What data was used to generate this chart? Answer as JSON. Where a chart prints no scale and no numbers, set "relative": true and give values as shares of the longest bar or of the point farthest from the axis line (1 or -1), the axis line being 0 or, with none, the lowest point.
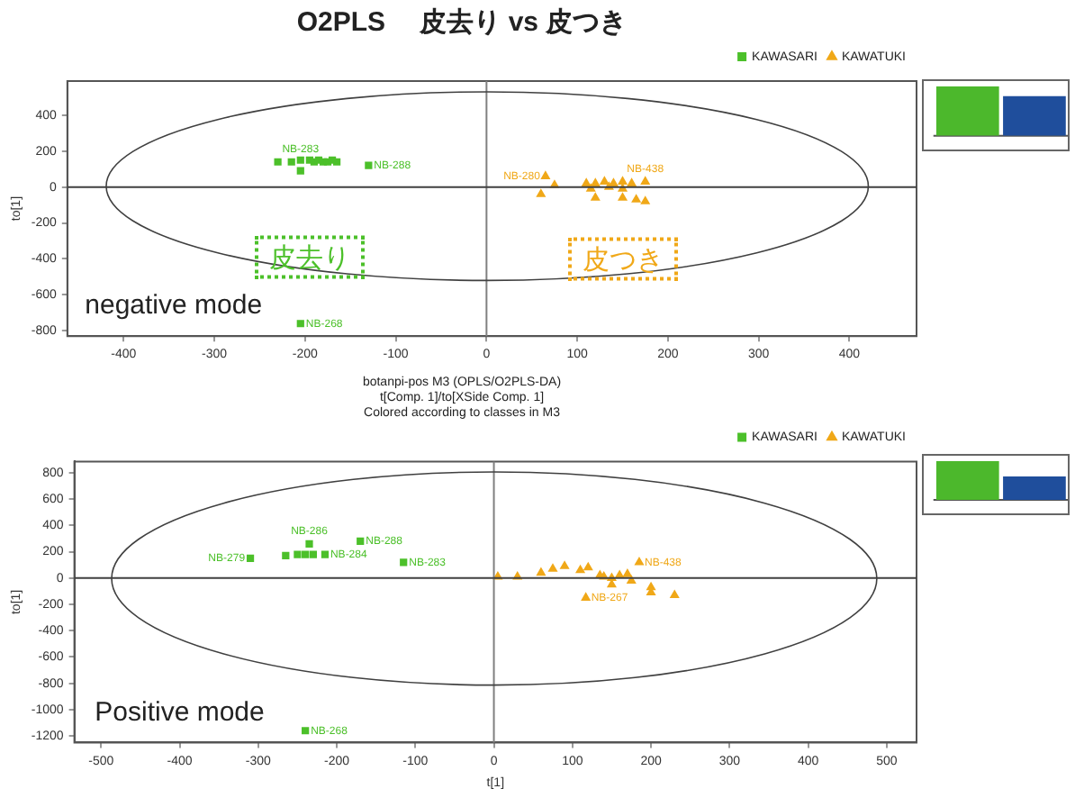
{
  "chart_data": [
    {
      "type": "scatter",
      "title": "O2PLS　 皮去り vs 皮つき",
      "ylabel": "to[1]",
      "legend": "top right",
      "grid": false,
      "xlim": [
        -462,
        474
      ],
      "xticks": [
        -400,
        -300,
        -200,
        -100,
        0,
        100,
        200,
        300,
        400
      ],
      "ylim": [
        -830,
        590
      ],
      "yticks": [
        -800,
        -600,
        -400,
        -200,
        0,
        200,
        400
      ],
      "ref_lines": [
        {
          "axis": "x",
          "value": 0,
          "color": "#808080"
        },
        {
          "axis": "y",
          "value": 0,
          "color": "#404040"
        }
      ],
      "annotations": [
        "negative  mode",
        "皮去り",
        "皮つき",
        {
          "text": "NB-283",
          "x": -205,
          "y": 90
        },
        {
          "text": "NB-288",
          "x": -130,
          "y": 120
        },
        {
          "text": "NB-268",
          "x": -205,
          "y": -760
        },
        {
          "text": "NB-280",
          "x": 65,
          "y": 60
        },
        {
          "text": "NB-438",
          "x": 175,
          "y": 30
        }
      ],
      "series": [
        {
          "name": "KAWASARI",
          "color": "#4cc02a",
          "marker": "square",
          "x": [
            -230,
            -215,
            -205,
            -195,
            -190,
            -185,
            -180,
            -175,
            -170,
            -165,
            -205,
            -130,
            -205
          ],
          "values": [
            140,
            140,
            150,
            150,
            140,
            150,
            140,
            140,
            150,
            140,
            90,
            120,
            -760
          ]
        },
        {
          "name": "KAWATUKI",
          "color": "#f0a818",
          "marker": "triangle",
          "x": [
            65,
            60,
            75,
            110,
            120,
            130,
            140,
            150,
            160,
            175,
            115,
            135,
            150,
            120,
            150,
            165,
            175
          ],
          "values": [
            60,
            -40,
            10,
            20,
            20,
            30,
            20,
            30,
            20,
            30,
            -10,
            0,
            -10,
            -60,
            -60,
            -70,
            -80
          ]
        }
      ]
    },
    {
      "type": "bar",
      "relative": true,
      "categories": [
        null,
        null
      ],
      "values": [
        1,
        0.8
      ],
      "colors": [
        "#4cb82c",
        "#1f4e9c"
      ]
    },
    {
      "type": "scatter",
      "subtitle": "botanpi-pos M3 (OPLS/O2PLS-DA)\nt[Comp. 1]/to[XSide Comp. 1]\nColored according to classes in M3",
      "xlabel": "t[1]",
      "ylabel": "to[1]",
      "legend": "top right",
      "grid": false,
      "xlim": [
        -534,
        538
      ],
      "xticks": [
        -500,
        -400,
        -300,
        -200,
        -100,
        0,
        100,
        200,
        300,
        400,
        500
      ],
      "ylim": [
        -1250,
        886
      ],
      "yticks": [
        -1200,
        -1000,
        -800,
        -600,
        -400,
        -200,
        0,
        200,
        400,
        600,
        800
      ],
      "ref_lines": [
        {
          "axis": "x",
          "value": 0,
          "color": "#808080"
        },
        {
          "axis": "y",
          "value": 0,
          "color": "#404040"
        }
      ],
      "annotations": [
        "Positive  mode",
        {
          "text": "NB-279",
          "x": -310,
          "y": 150
        },
        {
          "text": "NB-286",
          "x": -235,
          "y": 260
        },
        {
          "text": "NB-284",
          "x": -215,
          "y": 180
        },
        {
          "text": "NB-288",
          "x": -170,
          "y": 280
        },
        {
          "text": "NB-283",
          "x": -115,
          "y": 120
        },
        {
          "text": "NB-268",
          "x": -240,
          "y": -1160
        },
        {
          "text": "NB-438",
          "x": 185,
          "y": 120
        },
        {
          "text": "NB-267",
          "x": 117,
          "y": -150
        }
      ],
      "series": [
        {
          "name": "KAWASARI",
          "color": "#4cc02a",
          "marker": "square",
          "x": [
            -310,
            -265,
            -250,
            -240,
            -230,
            -215,
            -235,
            -170,
            -115,
            -240
          ],
          "values": [
            150,
            170,
            180,
            180,
            180,
            180,
            260,
            280,
            120,
            -1160
          ]
        },
        {
          "name": "KAWATUKI",
          "color": "#f0a818",
          "marker": "triangle",
          "x": [
            5,
            30,
            60,
            75,
            90,
            110,
            120,
            135,
            140,
            150,
            160,
            170,
            175,
            150,
            117,
            185,
            200,
            200,
            230
          ],
          "values": [
            10,
            10,
            40,
            70,
            90,
            60,
            80,
            20,
            10,
            0,
            20,
            30,
            -20,
            -50,
            -150,
            120,
            -70,
            -110,
            -130
          ]
        }
      ]
    },
    {
      "type": "bar",
      "relative": true,
      "categories": [
        null,
        null
      ],
      "values": [
        1,
        0.6
      ],
      "colors": [
        "#4cb82c",
        "#1f4e9c"
      ]
    }
  ]
}
